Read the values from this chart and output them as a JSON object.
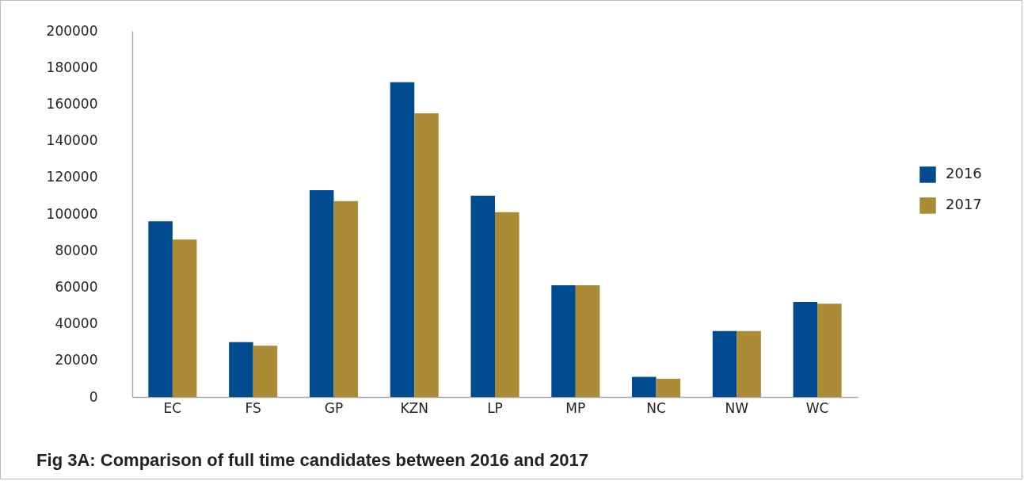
{
  "chart_data": {
    "type": "bar",
    "title": "Fig 3A: Comparison of full time candidates between 2016 and 2017",
    "categories": [
      "EC",
      "FS",
      "GP",
      "KZN",
      "LP",
      "MP",
      "NC",
      "NW",
      "WC"
    ],
    "series": [
      {
        "name": "2016",
        "color": "#004a8f",
        "values": [
          96000,
          30000,
          113000,
          172000,
          110000,
          61000,
          11000,
          36000,
          52000
        ]
      },
      {
        "name": "2017",
        "color": "#ab8b36",
        "values": [
          86000,
          28000,
          107000,
          155000,
          101000,
          61000,
          10000,
          36000,
          51000
        ]
      }
    ],
    "ylim": [
      0,
      200000
    ],
    "yticks": [
      0,
      20000,
      40000,
      60000,
      80000,
      100000,
      120000,
      140000,
      160000,
      180000,
      200000
    ],
    "grid": false,
    "legend": "right"
  }
}
